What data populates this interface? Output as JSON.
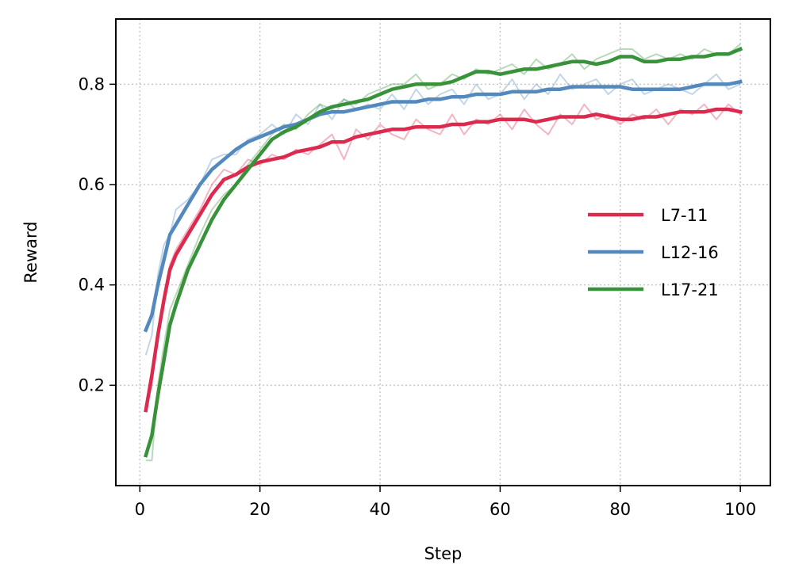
{
  "chart_data": {
    "type": "line",
    "xlabel": "Step",
    "ylabel": "Reward",
    "xlim": [
      -4,
      105
    ],
    "ylim": [
      0.0,
      0.93
    ],
    "xticks": [
      0,
      20,
      40,
      60,
      80,
      100
    ],
    "yticks": [
      0.2,
      0.4,
      0.6,
      0.8
    ],
    "xtick_labels": [
      "0",
      "20",
      "40",
      "60",
      "80",
      "100"
    ],
    "ytick_labels": [
      "0.2",
      "0.4",
      "0.6",
      "0.8"
    ],
    "grid": true,
    "legend_position": "center-right",
    "series": [
      {
        "name": "L7-11",
        "color": "#dc2a4f",
        "x": [
          1,
          2,
          3,
          4,
          5,
          6,
          8,
          10,
          12,
          14,
          16,
          18,
          20,
          22,
          24,
          26,
          28,
          30,
          32,
          34,
          36,
          38,
          40,
          42,
          44,
          46,
          48,
          50,
          52,
          54,
          56,
          58,
          60,
          62,
          64,
          66,
          68,
          70,
          72,
          74,
          76,
          78,
          80,
          82,
          84,
          86,
          88,
          90,
          92,
          94,
          96,
          98,
          100
        ],
        "smoothed": [
          0.15,
          0.22,
          0.3,
          0.37,
          0.43,
          0.46,
          0.5,
          0.54,
          0.58,
          0.61,
          0.62,
          0.635,
          0.645,
          0.65,
          0.655,
          0.665,
          0.67,
          0.675,
          0.685,
          0.685,
          0.695,
          0.7,
          0.705,
          0.71,
          0.71,
          0.715,
          0.715,
          0.715,
          0.72,
          0.72,
          0.725,
          0.725,
          0.73,
          0.73,
          0.73,
          0.725,
          0.73,
          0.735,
          0.735,
          0.735,
          0.74,
          0.735,
          0.73,
          0.73,
          0.735,
          0.735,
          0.74,
          0.745,
          0.745,
          0.745,
          0.75,
          0.75,
          0.745
        ],
        "raw": [
          0.15,
          0.2,
          0.31,
          0.38,
          0.44,
          0.47,
          0.51,
          0.55,
          0.6,
          0.63,
          0.62,
          0.65,
          0.64,
          0.66,
          0.65,
          0.67,
          0.66,
          0.68,
          0.7,
          0.65,
          0.71,
          0.69,
          0.72,
          0.7,
          0.69,
          0.73,
          0.71,
          0.7,
          0.74,
          0.7,
          0.73,
          0.72,
          0.74,
          0.71,
          0.75,
          0.72,
          0.7,
          0.74,
          0.72,
          0.76,
          0.73,
          0.74,
          0.72,
          0.74,
          0.73,
          0.75,
          0.72,
          0.75,
          0.74,
          0.76,
          0.73,
          0.76,
          0.74
        ]
      },
      {
        "name": "L12-16",
        "color": "#5389bd",
        "x": [
          1,
          2,
          3,
          4,
          5,
          6,
          8,
          10,
          12,
          14,
          16,
          18,
          20,
          22,
          24,
          26,
          28,
          30,
          32,
          34,
          36,
          38,
          40,
          42,
          44,
          46,
          48,
          50,
          52,
          54,
          56,
          58,
          60,
          62,
          64,
          66,
          68,
          70,
          72,
          74,
          76,
          78,
          80,
          82,
          84,
          86,
          88,
          90,
          92,
          94,
          96,
          98,
          100
        ],
        "smoothed": [
          0.31,
          0.34,
          0.4,
          0.45,
          0.5,
          0.52,
          0.56,
          0.6,
          0.63,
          0.65,
          0.67,
          0.685,
          0.695,
          0.705,
          0.715,
          0.72,
          0.73,
          0.74,
          0.745,
          0.745,
          0.75,
          0.755,
          0.76,
          0.765,
          0.765,
          0.765,
          0.77,
          0.77,
          0.775,
          0.775,
          0.78,
          0.78,
          0.78,
          0.785,
          0.785,
          0.785,
          0.79,
          0.79,
          0.795,
          0.795,
          0.795,
          0.795,
          0.795,
          0.79,
          0.79,
          0.79,
          0.79,
          0.79,
          0.795,
          0.8,
          0.8,
          0.8,
          0.805
        ],
        "raw": [
          0.26,
          0.3,
          0.42,
          0.48,
          0.5,
          0.55,
          0.57,
          0.6,
          0.65,
          0.66,
          0.66,
          0.69,
          0.7,
          0.72,
          0.7,
          0.74,
          0.72,
          0.76,
          0.73,
          0.77,
          0.75,
          0.76,
          0.75,
          0.78,
          0.75,
          0.79,
          0.76,
          0.78,
          0.79,
          0.76,
          0.8,
          0.77,
          0.78,
          0.81,
          0.77,
          0.8,
          0.78,
          0.82,
          0.79,
          0.8,
          0.81,
          0.78,
          0.8,
          0.81,
          0.78,
          0.79,
          0.8,
          0.79,
          0.78,
          0.8,
          0.82,
          0.79,
          0.8
        ]
      },
      {
        "name": "L17-21",
        "color": "#37923a",
        "x": [
          1,
          2,
          3,
          4,
          5,
          6,
          8,
          10,
          12,
          14,
          16,
          18,
          20,
          22,
          24,
          26,
          28,
          30,
          32,
          34,
          36,
          38,
          40,
          42,
          44,
          46,
          48,
          50,
          52,
          54,
          56,
          58,
          60,
          62,
          64,
          66,
          68,
          70,
          72,
          74,
          76,
          78,
          80,
          82,
          84,
          86,
          88,
          90,
          92,
          94,
          96,
          98,
          100
        ],
        "smoothed": [
          0.06,
          0.1,
          0.18,
          0.25,
          0.32,
          0.36,
          0.43,
          0.48,
          0.53,
          0.57,
          0.6,
          0.63,
          0.66,
          0.69,
          0.705,
          0.715,
          0.73,
          0.745,
          0.755,
          0.76,
          0.765,
          0.77,
          0.78,
          0.79,
          0.795,
          0.8,
          0.8,
          0.8,
          0.805,
          0.815,
          0.825,
          0.825,
          0.82,
          0.825,
          0.83,
          0.83,
          0.835,
          0.84,
          0.845,
          0.845,
          0.84,
          0.845,
          0.855,
          0.855,
          0.845,
          0.845,
          0.85,
          0.85,
          0.855,
          0.855,
          0.86,
          0.86,
          0.87
        ],
        "raw": [
          0.05,
          0.05,
          0.2,
          0.28,
          0.35,
          0.38,
          0.44,
          0.5,
          0.55,
          0.58,
          0.6,
          0.64,
          0.67,
          0.7,
          0.72,
          0.71,
          0.74,
          0.76,
          0.75,
          0.77,
          0.76,
          0.78,
          0.79,
          0.8,
          0.8,
          0.82,
          0.79,
          0.8,
          0.82,
          0.81,
          0.83,
          0.82,
          0.83,
          0.84,
          0.82,
          0.85,
          0.83,
          0.84,
          0.86,
          0.83,
          0.85,
          0.86,
          0.87,
          0.87,
          0.85,
          0.86,
          0.85,
          0.86,
          0.85,
          0.87,
          0.86,
          0.86,
          0.88
        ]
      }
    ]
  }
}
